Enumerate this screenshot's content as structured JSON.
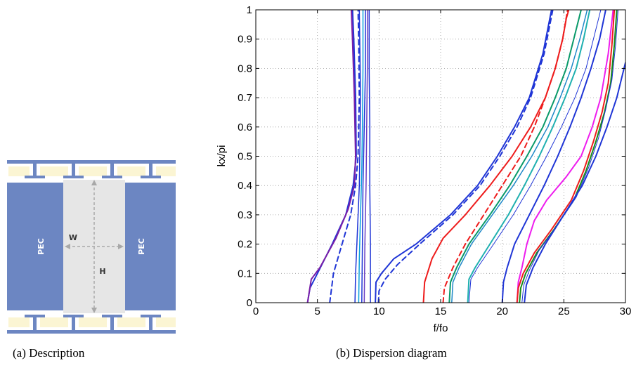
{
  "captions": {
    "a": "(a)  Description",
    "b": "(b)  Dispersion diagram"
  },
  "description": {
    "left_label": "PEC",
    "right_label": "PEC",
    "width_label": "W",
    "height_label": "H",
    "colors": {
      "pec": "#6c86c2",
      "gap": "#e6e6e6",
      "rail": "#6c86c2",
      "cell": "#fbf5d3",
      "arrow": "#a8a8a8"
    }
  },
  "chart_data": {
    "type": "line",
    "title": "",
    "xlabel": "f/fo",
    "ylabel": "kx/pi",
    "xlim": [
      0,
      30
    ],
    "ylim": [
      0,
      1
    ],
    "xticks": [
      0,
      5,
      10,
      15,
      20,
      25,
      30
    ],
    "yticks": [
      0,
      0.1,
      0.2,
      0.3,
      0.4,
      0.5,
      0.6,
      0.7,
      0.8,
      0.9,
      1
    ],
    "xtick_labels": [
      "0",
      "5",
      "10",
      "15",
      "20",
      "25",
      "30"
    ],
    "ytick_labels": [
      "0",
      "0.1",
      "0.2",
      "0.3",
      "0.4",
      "0.5",
      "0.6",
      "0.7",
      "0.8",
      "0.9",
      "1"
    ],
    "grid": true,
    "series": [
      {
        "color": "#1f35d6",
        "dash": false,
        "width": 2,
        "x": [
          4.2,
          4.4,
          5.0,
          6.2,
          7.3,
          7.9,
          8.15,
          8.1,
          7.95,
          7.85
        ],
        "y": [
          0,
          0.05,
          0.1,
          0.2,
          0.3,
          0.4,
          0.5,
          0.7,
          0.9,
          1
        ]
      },
      {
        "color": "#7a1fa8",
        "dash": false,
        "width": 2,
        "x": [
          4.2,
          4.5,
          5.2,
          6.5,
          7.5,
          8.0,
          8.1,
          8.0,
          7.85,
          7.75
        ],
        "y": [
          0,
          0.08,
          0.12,
          0.22,
          0.32,
          0.4,
          0.5,
          0.7,
          0.9,
          1
        ]
      },
      {
        "color": "#1f35d6",
        "dash": true,
        "width": 2,
        "x": [
          6.0,
          6.3,
          7.0,
          7.7,
          8.1,
          8.3,
          8.4,
          8.35,
          8.3
        ],
        "y": [
          0,
          0.1,
          0.2,
          0.3,
          0.4,
          0.5,
          0.7,
          0.9,
          1
        ]
      },
      {
        "color": "#1f35d6",
        "dash": false,
        "width": 1.5,
        "x": [
          8.05,
          8.1,
          8.25,
          8.4,
          8.45,
          8.5,
          8.45,
          8.4
        ],
        "y": [
          0,
          0.1,
          0.25,
          0.4,
          0.55,
          0.7,
          0.85,
          1
        ]
      },
      {
        "color": "#0aa0dc",
        "dash": false,
        "width": 1.5,
        "x": [
          8.35,
          8.4,
          8.5,
          8.6,
          8.65,
          8.7,
          8.7
        ],
        "y": [
          0,
          0.15,
          0.3,
          0.45,
          0.6,
          0.8,
          1
        ]
      },
      {
        "color": "#1f35d6",
        "dash": false,
        "width": 1.5,
        "x": [
          8.6,
          8.65,
          8.7,
          8.8,
          8.9,
          8.9
        ],
        "y": [
          0,
          0.2,
          0.4,
          0.6,
          0.8,
          1
        ]
      },
      {
        "color": "#6a3fc4",
        "dash": false,
        "width": 1.5,
        "x": [
          8.8,
          8.85,
          8.95,
          9.0,
          9.05,
          9.05
        ],
        "y": [
          0,
          0.2,
          0.4,
          0.6,
          0.8,
          1
        ]
      },
      {
        "color": "#1f35d6",
        "dash": false,
        "width": 1.5,
        "x": [
          9.3,
          9.3,
          9.25,
          9.25,
          9.2,
          9.2
        ],
        "y": [
          0,
          0.2,
          0.4,
          0.6,
          0.8,
          1
        ]
      },
      {
        "color": "#1f35d6",
        "dash": false,
        "width": 2,
        "x": [
          9.7,
          9.75,
          10.2,
          11.2,
          13.0,
          15.8,
          18.0,
          19.6,
          21.0,
          22.2,
          23.3,
          24.0
        ],
        "y": [
          0,
          0.07,
          0.1,
          0.15,
          0.2,
          0.3,
          0.4,
          0.5,
          0.6,
          0.7,
          0.85,
          1
        ]
      },
      {
        "color": "#1f35d6",
        "dash": true,
        "width": 2,
        "x": [
          9.95,
          10.0,
          10.5,
          11.5,
          13.3,
          16.0,
          18.2,
          19.8,
          21.2,
          22.3,
          23.4,
          24.1
        ],
        "y": [
          0,
          0.04,
          0.08,
          0.13,
          0.2,
          0.3,
          0.4,
          0.5,
          0.6,
          0.7,
          0.85,
          1
        ]
      },
      {
        "color": "#ee1c1c",
        "dash": false,
        "width": 2,
        "x": [
          13.6,
          13.7,
          14.3,
          15.2,
          17.0,
          19.0,
          20.8,
          22.3,
          23.5,
          24.3,
          24.9,
          25.2,
          25.4
        ],
        "y": [
          0,
          0.07,
          0.15,
          0.22,
          0.3,
          0.4,
          0.5,
          0.6,
          0.7,
          0.8,
          0.9,
          0.97,
          1
        ]
      },
      {
        "color": "#ee1c1c",
        "dash": true,
        "width": 2,
        "x": [
          15.2,
          15.3,
          16.0,
          17.0,
          18.5,
          20.0,
          21.5,
          22.6,
          23.5,
          24.3,
          24.9,
          25.3
        ],
        "y": [
          0,
          0.05,
          0.12,
          0.2,
          0.3,
          0.4,
          0.5,
          0.6,
          0.7,
          0.8,
          0.9,
          1
        ]
      },
      {
        "color": "#0a9a6a",
        "dash": false,
        "width": 2,
        "x": [
          15.7,
          15.8,
          16.3,
          17.3,
          19.0,
          20.6,
          22.0,
          23.3,
          24.3,
          25.2,
          25.8,
          26.4
        ],
        "y": [
          0,
          0.07,
          0.12,
          0.2,
          0.3,
          0.4,
          0.5,
          0.6,
          0.7,
          0.8,
          0.9,
          1
        ]
      },
      {
        "color": "#1f88c8",
        "dash": false,
        "width": 1.5,
        "x": [
          15.9,
          16.0,
          16.5,
          17.5,
          19.2,
          20.9,
          22.4,
          23.7,
          24.7,
          25.6,
          26.3,
          26.9
        ],
        "y": [
          0,
          0.07,
          0.12,
          0.2,
          0.3,
          0.4,
          0.5,
          0.6,
          0.7,
          0.8,
          0.9,
          1
        ]
      },
      {
        "color": "#1fb0b0",
        "dash": false,
        "width": 2,
        "x": [
          17.2,
          17.3,
          17.8,
          19.0,
          20.5,
          21.8,
          23.0,
          24.1,
          25.1,
          26.0,
          26.6,
          27.1
        ],
        "y": [
          0,
          0.08,
          0.12,
          0.2,
          0.3,
          0.4,
          0.5,
          0.6,
          0.7,
          0.8,
          0.9,
          1
        ]
      },
      {
        "color": "#1f35d6",
        "dash": false,
        "width": 1,
        "x": [
          17.3,
          17.45,
          18.0,
          19.3,
          20.9,
          22.3,
          23.6,
          24.8,
          25.9,
          26.8,
          27.4,
          28.0
        ],
        "y": [
          0,
          0.08,
          0.12,
          0.2,
          0.3,
          0.4,
          0.5,
          0.6,
          0.7,
          0.8,
          0.9,
          1
        ]
      },
      {
        "color": "#1f35d6",
        "dash": false,
        "width": 2,
        "x": [
          20.0,
          20.1,
          20.4,
          21.0,
          22.2,
          23.4,
          24.5,
          25.5,
          26.4,
          27.2,
          27.9,
          28.4
        ],
        "y": [
          0,
          0.07,
          0.12,
          0.2,
          0.3,
          0.4,
          0.5,
          0.6,
          0.7,
          0.8,
          0.9,
          1
        ]
      },
      {
        "color": "#ee1cee",
        "dash": false,
        "width": 2,
        "x": [
          21.2,
          21.3,
          21.6,
          22.0,
          22.6,
          23.6,
          25.2,
          26.4,
          27.3,
          28.0,
          28.6,
          29.0
        ],
        "y": [
          0,
          0.07,
          0.12,
          0.2,
          0.28,
          0.35,
          0.43,
          0.5,
          0.6,
          0.7,
          0.85,
          1
        ]
      },
      {
        "color": "#ee1c1c",
        "dash": false,
        "width": 2,
        "x": [
          21.2,
          21.3,
          21.7,
          22.6,
          24.0,
          25.6,
          26.6,
          27.4,
          28.1,
          28.6,
          28.9,
          29.1
        ],
        "y": [
          0,
          0.05,
          0.1,
          0.17,
          0.25,
          0.35,
          0.45,
          0.55,
          0.65,
          0.75,
          0.88,
          1
        ]
      },
      {
        "color": "#1a8a1a",
        "dash": false,
        "width": 2,
        "x": [
          21.4,
          21.5,
          21.9,
          22.8,
          24.2,
          25.8,
          26.8,
          27.6,
          28.3,
          28.8,
          29.1,
          29.3
        ],
        "y": [
          0,
          0.05,
          0.1,
          0.17,
          0.25,
          0.35,
          0.45,
          0.55,
          0.65,
          0.75,
          0.88,
          1
        ]
      },
      {
        "color": "#1f35d6",
        "dash": false,
        "width": 1,
        "x": [
          21.6,
          21.75,
          22.2,
          23.0,
          24.4,
          26.0,
          27.0,
          27.8,
          28.4,
          28.9,
          29.2,
          29.4
        ],
        "y": [
          0,
          0.06,
          0.11,
          0.18,
          0.26,
          0.36,
          0.46,
          0.56,
          0.66,
          0.76,
          0.88,
          1
        ]
      },
      {
        "color": "#1f35d6",
        "dash": false,
        "width": 2,
        "x": [
          21.8,
          21.95,
          22.5,
          23.5,
          25.0,
          26.5,
          27.6,
          28.5,
          29.3,
          30.0
        ],
        "y": [
          0,
          0.06,
          0.12,
          0.2,
          0.3,
          0.4,
          0.5,
          0.6,
          0.7,
          0.82
        ]
      }
    ]
  }
}
